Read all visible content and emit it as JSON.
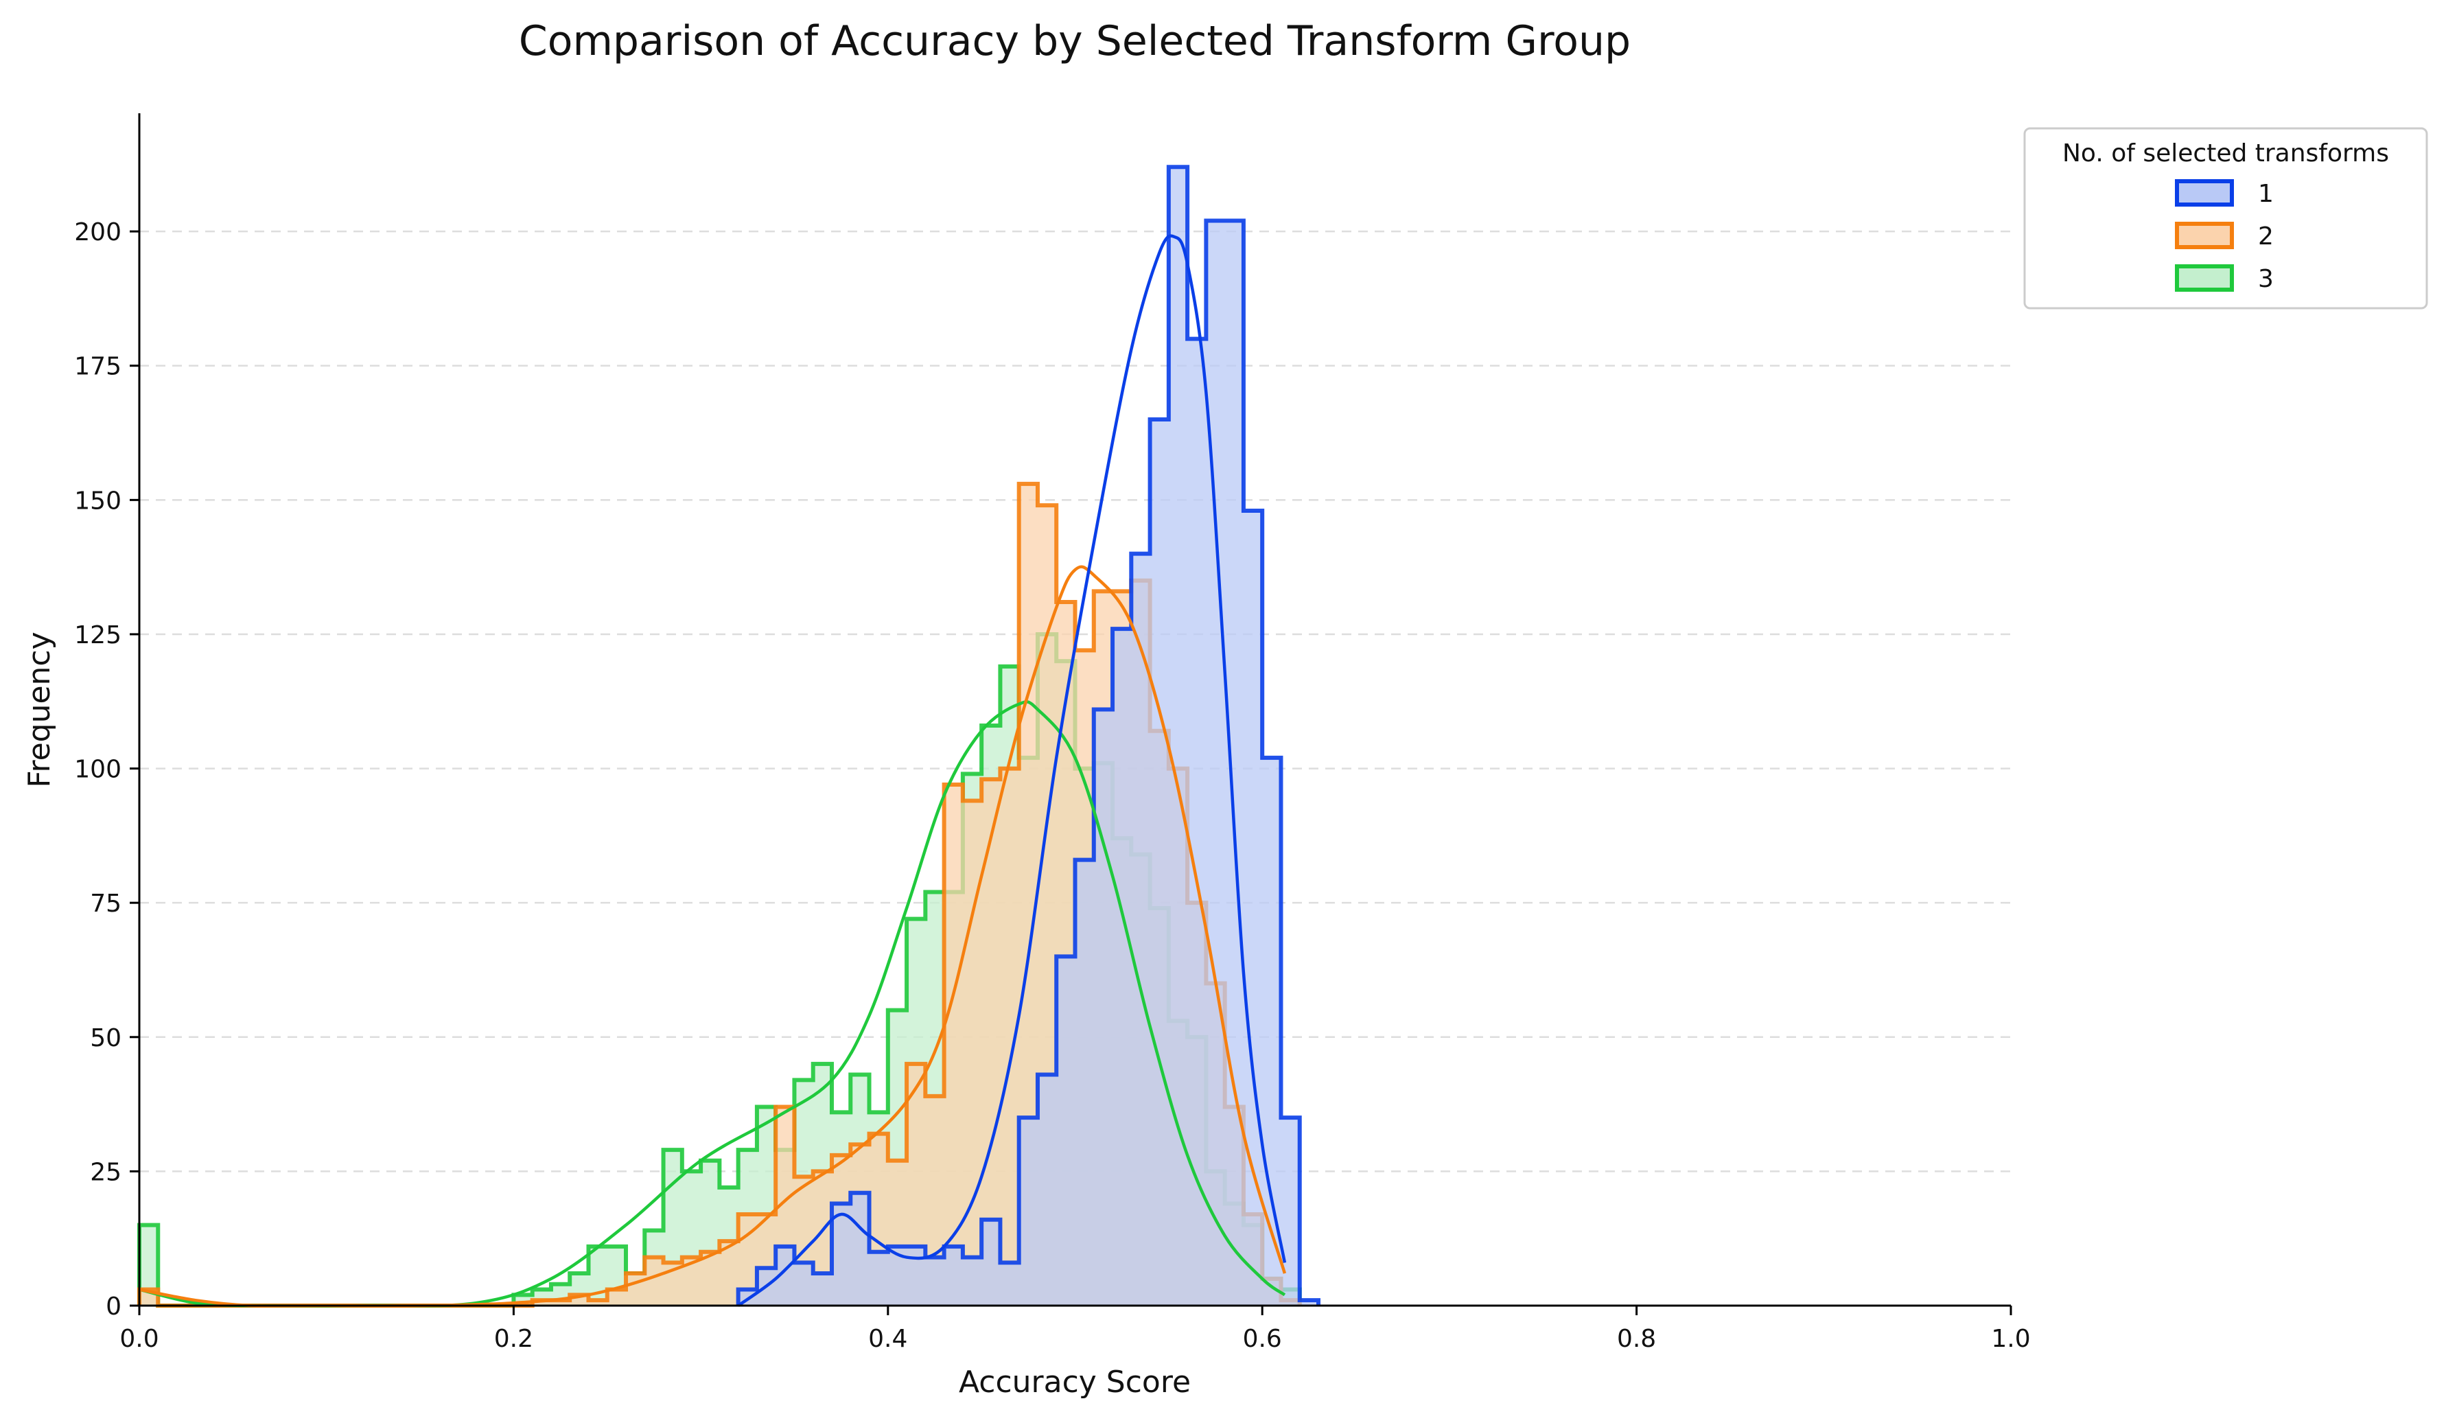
{
  "chart_data": {
    "type": "histogram",
    "title": "Comparison of Accuracy by Selected Transform Group",
    "xlabel": "Accuracy Score",
    "ylabel": "Frequency",
    "xlim": [
      0.0,
      1.0
    ],
    "ylim": [
      0,
      222
    ],
    "xticks": [
      "0.0",
      "0.2",
      "0.4",
      "0.6",
      "0.8",
      "1.0"
    ],
    "xtick_values": [
      0.0,
      0.2,
      0.4,
      0.6,
      0.8,
      1.0
    ],
    "yticks": [
      "0",
      "25",
      "50",
      "75",
      "100",
      "125",
      "150",
      "175",
      "200"
    ],
    "ytick_values": [
      0,
      25,
      50,
      75,
      100,
      125,
      150,
      175,
      200
    ],
    "grid": "horizontal dashed",
    "bin_width": 0.01,
    "legend": {
      "title": "No. of selected transforms",
      "placement": "upper right outside"
    },
    "series": [
      {
        "name": "1",
        "color": "#0a3fe8",
        "fill": "#b9c9f6",
        "bin_start": 0.32,
        "counts": [
          3,
          7,
          11,
          8,
          6,
          19,
          21,
          10,
          11,
          11,
          9,
          11,
          9,
          16,
          8,
          35,
          43,
          65,
          83,
          111,
          126,
          140,
          165,
          212,
          180,
          202,
          202,
          148,
          102,
          35,
          1
        ],
        "kde_x": [
          0.32,
          0.34,
          0.36,
          0.375,
          0.39,
          0.41,
          0.43,
          0.45,
          0.47,
          0.49,
          0.51,
          0.53,
          0.545,
          0.553,
          0.56,
          0.57,
          0.58,
          0.59,
          0.6,
          0.612
        ],
        "kde_y": [
          0,
          5,
          12,
          17,
          13,
          9,
          11,
          24,
          54,
          102,
          142,
          178,
          196,
          199,
          194,
          170,
          118,
          62,
          30,
          8
        ]
      },
      {
        "name": "2",
        "color": "#f57f0f",
        "fill": "#fbd3ad",
        "bin_start": 0.0,
        "counts": [
          3,
          0,
          0,
          0,
          0,
          0,
          0,
          0,
          0,
          0,
          0,
          0,
          0,
          0,
          0,
          0,
          0,
          0,
          0,
          0,
          0,
          1,
          1,
          2,
          1,
          3,
          6,
          9,
          8,
          9,
          10,
          12,
          17,
          17,
          37,
          24,
          25,
          28,
          30,
          32,
          27,
          45,
          39,
          97,
          94,
          98,
          100,
          153,
          149,
          131,
          122,
          133,
          133,
          135,
          107,
          100,
          75,
          60,
          37,
          17,
          5,
          1
        ],
        "kde_x": [
          0.0,
          0.03,
          0.06,
          0.1,
          0.15,
          0.2,
          0.24,
          0.28,
          0.32,
          0.35,
          0.38,
          0.41,
          0.43,
          0.45,
          0.47,
          0.49,
          0.5,
          0.51,
          0.53,
          0.55,
          0.57,
          0.59,
          0.612
        ],
        "kde_y": [
          3,
          1,
          0,
          0,
          0,
          0.5,
          2,
          6,
          12,
          21,
          28,
          38,
          52,
          80,
          108,
          130,
          137,
          136,
          127,
          104,
          70,
          32,
          6
        ]
      },
      {
        "name": "3",
        "color": "#1fc93c",
        "fill": "#c4efce",
        "bin_start": 0.0,
        "counts": [
          15,
          0,
          0,
          0,
          0,
          0,
          0,
          0,
          0,
          0,
          0,
          0,
          0,
          0,
          0,
          0,
          0,
          0,
          0,
          0,
          2,
          3,
          4,
          6,
          11,
          11,
          6,
          14,
          29,
          25,
          27,
          22,
          29,
          37,
          29,
          42,
          45,
          36,
          43,
          36,
          55,
          72,
          77,
          77,
          99,
          108,
          119,
          102,
          125,
          120,
          100,
          101,
          87,
          84,
          74,
          53,
          50,
          25,
          19,
          15,
          5,
          3
        ],
        "kde_x": [
          0.0,
          0.03,
          0.06,
          0.12,
          0.18,
          0.22,
          0.26,
          0.3,
          0.34,
          0.37,
          0.39,
          0.41,
          0.43,
          0.45,
          0.47,
          0.48,
          0.5,
          0.52,
          0.54,
          0.56,
          0.58,
          0.6,
          0.612
        ],
        "kde_y": [
          3,
          0.5,
          0,
          0,
          0.5,
          5,
          15,
          27,
          35,
          42,
          54,
          74,
          95,
          107,
          112,
          111,
          102,
          80,
          52,
          28,
          13,
          5,
          2
        ]
      }
    ]
  }
}
